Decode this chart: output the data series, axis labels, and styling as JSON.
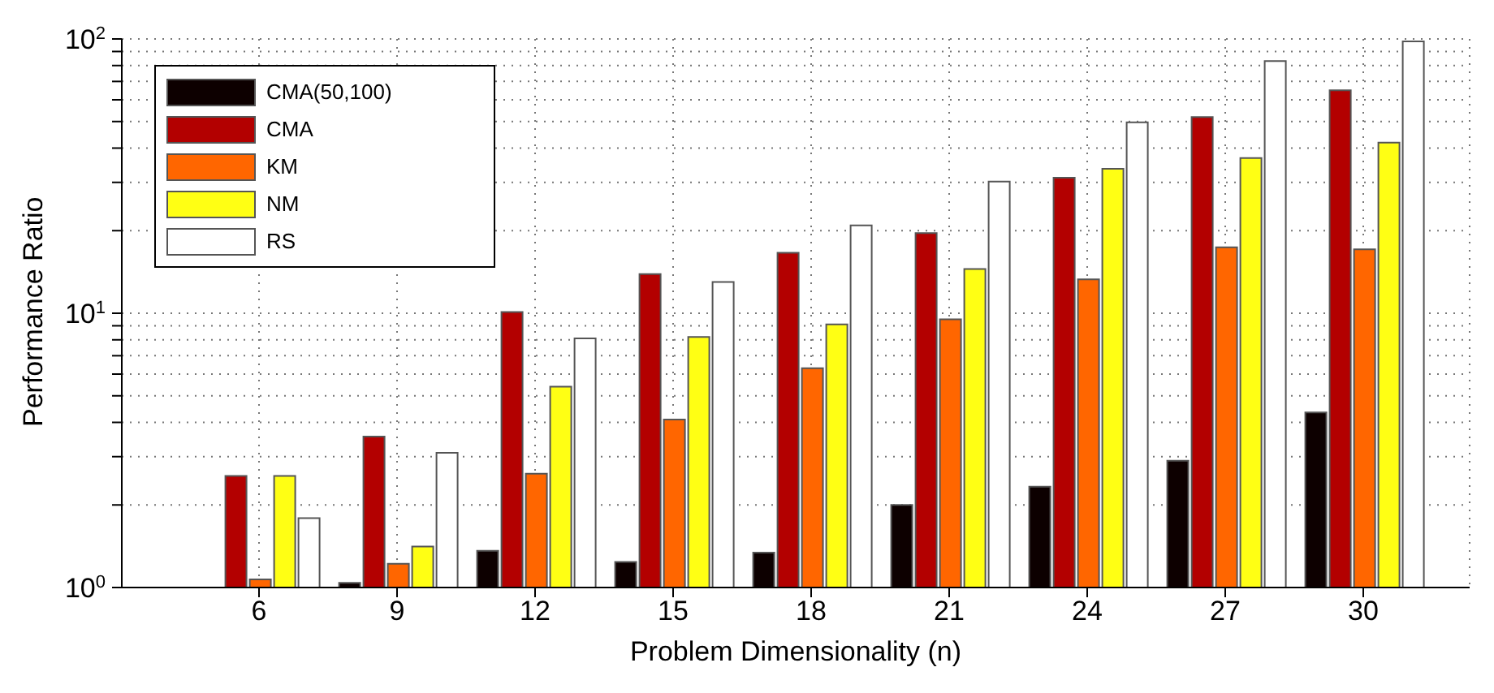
{
  "chart_data": {
    "type": "bar",
    "xlabel": "Problem Dimensionality (n)",
    "ylabel": "Performance Ratio",
    "categories": [
      "6",
      "9",
      "12",
      "15",
      "18",
      "21",
      "24",
      "27",
      "30"
    ],
    "series": [
      {
        "name": "CMA(50,100)",
        "color": "#0d0000",
        "values": [
          null,
          1.04,
          1.36,
          1.24,
          1.34,
          2.0,
          2.33,
          2.9,
          4.35
        ]
      },
      {
        "name": "CMA",
        "color": "#b30000",
        "values": [
          2.55,
          3.55,
          10.1,
          13.9,
          16.6,
          19.6,
          31.2,
          51.9,
          65
        ]
      },
      {
        "name": "KM",
        "color": "#ff6600",
        "values": [
          1.07,
          1.22,
          2.6,
          4.1,
          6.3,
          9.5,
          13.3,
          17.4,
          17.1
        ]
      },
      {
        "name": "NM",
        "color": "#ffff14",
        "values": [
          2.55,
          1.41,
          5.4,
          8.2,
          9.1,
          14.5,
          33.6,
          36.8,
          41.9
        ]
      },
      {
        "name": "RS",
        "color": "#ffffff",
        "values": [
          1.79,
          3.1,
          8.1,
          13.0,
          20.9,
          30.2,
          49.7,
          83,
          98
        ]
      }
    ],
    "log": true,
    "ylim": [
      1,
      100
    ],
    "yticks": [
      {
        "value": 1,
        "label": "10$^{0}$"
      },
      {
        "value": 2,
        "label": null
      },
      {
        "value": 3,
        "label": null
      },
      {
        "value": 4,
        "label": null
      },
      {
        "value": 5,
        "label": null
      },
      {
        "value": 6,
        "label": null
      },
      {
        "value": 7,
        "label": null
      },
      {
        "value": 8,
        "label": null
      },
      {
        "value": 9,
        "label": null
      },
      {
        "value": 10,
        "label": "10$^{1}$"
      },
      {
        "value": 20,
        "label": null
      },
      {
        "value": 30,
        "label": null
      },
      {
        "value": 40,
        "label": null
      },
      {
        "value": 50,
        "label": null
      },
      {
        "value": 60,
        "label": null
      },
      {
        "value": 70,
        "label": null
      },
      {
        "value": 80,
        "label": null
      },
      {
        "value": 90,
        "label": null
      },
      {
        "value": 100,
        "label": "10$^{2}$"
      }
    ],
    "grid": true,
    "legend": "top left"
  }
}
